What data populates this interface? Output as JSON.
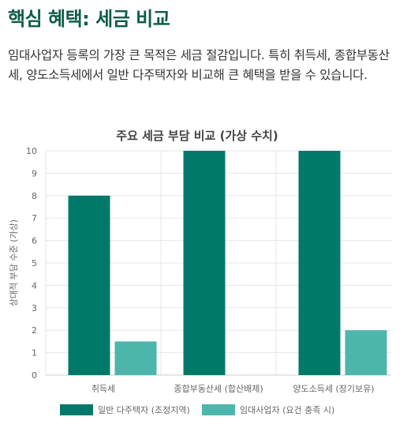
{
  "section": {
    "heading": "핵심 혜택: 세금 비교",
    "intro": "임대사업자 등록의 가장 큰 목적은 세금 절감입니다. 특히 취득세, 종합부동산세, 양도소득세에서 일반 다주택자와 비교해 큰 혜택을 받을 수 있습니다."
  },
  "colors": {
    "series_1": "#00796b",
    "series_2": "#4db6ac",
    "grid": "#e6e6e6",
    "axis_text": "#666666",
    "title_text": "#444444"
  },
  "chart_data": {
    "type": "bar",
    "title": "주요 세금 부담 비교 (가상 수치)",
    "xlabel": "",
    "ylabel": "상대적 부담 수준 (가상)",
    "categories": [
      "취득세",
      "종합부동산세 (합산배제)",
      "양도소득세 (장기보유)"
    ],
    "series": [
      {
        "name": "일반 다주택자 (조정지역)",
        "values": [
          8,
          10,
          10
        ]
      },
      {
        "name": "임대사업자 (요건 충족 시)",
        "values": [
          1.5,
          0,
          2
        ]
      }
    ],
    "ylim": [
      0,
      10
    ],
    "yticks": [
      0,
      1,
      2,
      3,
      4,
      5,
      6,
      7,
      8,
      9,
      10
    ],
    "grid": true,
    "legend": "bottom"
  }
}
